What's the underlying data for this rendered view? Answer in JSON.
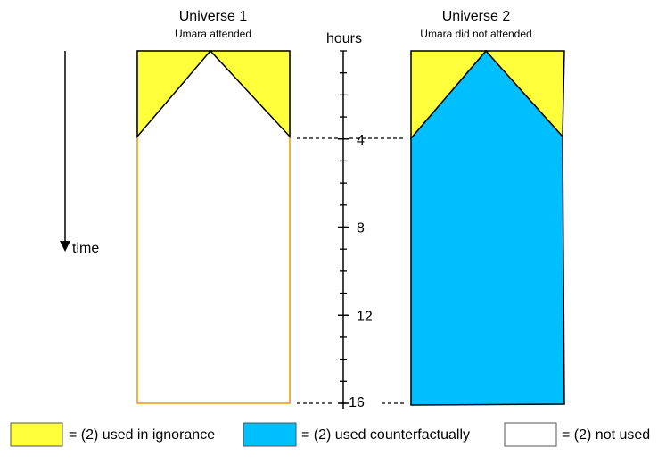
{
  "universes": [
    {
      "title": "Universe 1",
      "subtitle": "Umara attended"
    },
    {
      "title": "Universe 2",
      "subtitle": "Umara did not attended"
    }
  ],
  "axis": {
    "label": "hours",
    "ticks": [
      4,
      8,
      12,
      16
    ]
  },
  "time_label": "time",
  "legend": [
    {
      "label": "= (2) used in ignorance"
    },
    {
      "label": "= (2) used counterfactually"
    },
    {
      "label": "= (2) not used"
    }
  ]
}
